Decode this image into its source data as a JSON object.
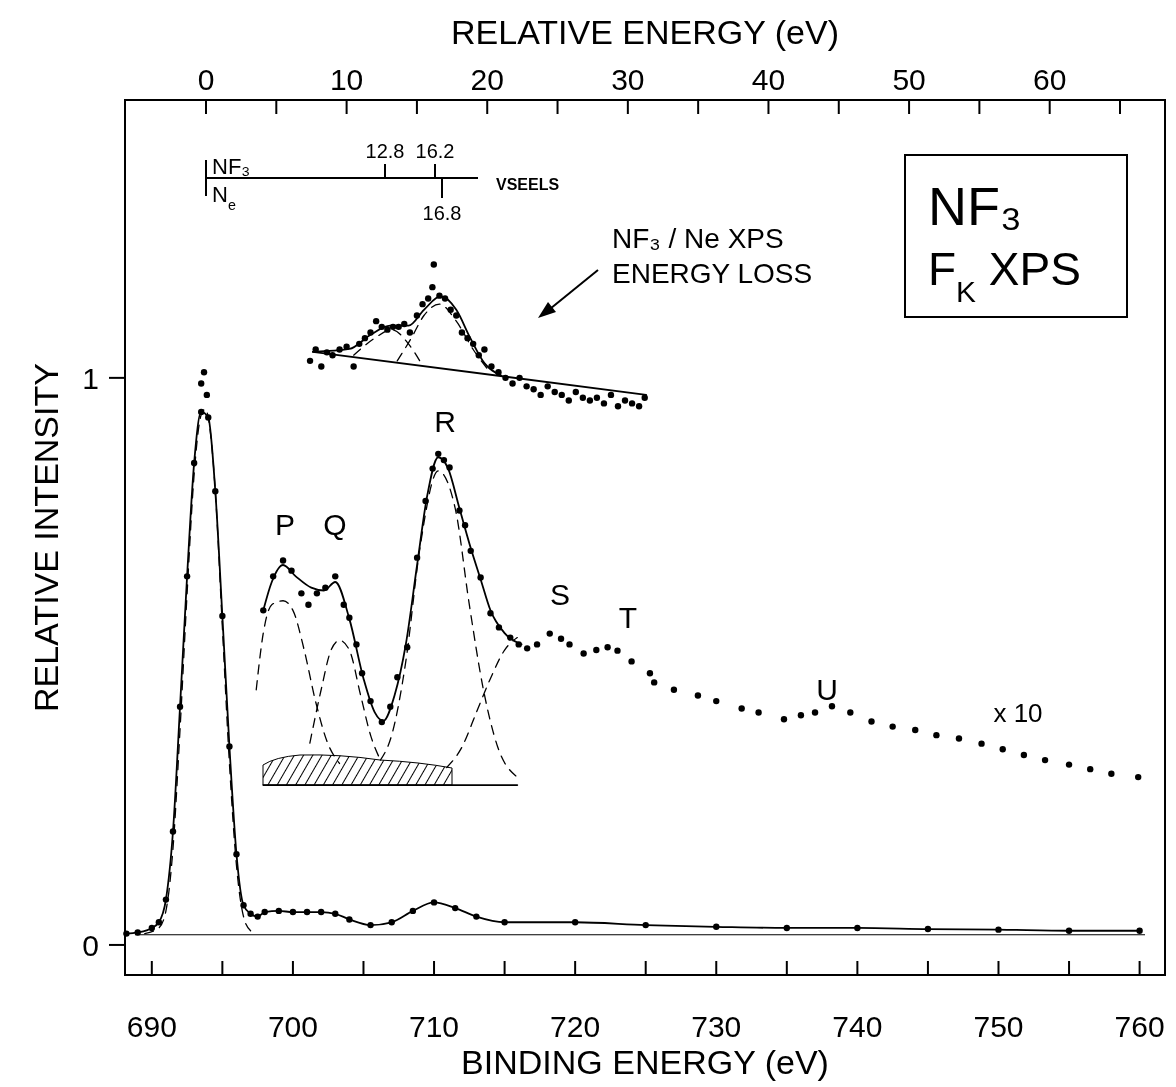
{
  "chart_data": {
    "type": "line",
    "xlabel": "BINDING ENERGY (eV)",
    "ylabel": "RELATIVE INTENSITY",
    "x2label": "RELATIVE ENERGY (eV)",
    "xlim": [
      688.1,
      761.8
    ],
    "xticks": [
      690,
      {
        "value": 695,
        "label": null
      },
      700,
      {
        "value": 705,
        "label": null
      },
      710,
      {
        "value": 715,
        "label": null
      },
      720,
      {
        "value": 725,
        "label": null
      },
      730,
      {
        "value": 735,
        "label": null
      },
      740,
      {
        "value": 745,
        "label": null
      },
      750,
      {
        "value": 755,
        "label": null
      },
      760
    ],
    "x2lim": [
      -5.76,
      68.2
    ],
    "x2ticks": [
      0,
      {
        "value": 5,
        "label": null
      },
      10,
      {
        "value": 15,
        "label": null
      },
      20,
      {
        "value": 25,
        "label": null
      },
      30,
      {
        "value": 35,
        "label": null
      },
      40,
      {
        "value": 45,
        "label": null
      },
      50,
      {
        "value": 55,
        "label": null
      },
      60,
      {
        "value": 65,
        "label": null
      }
    ],
    "ylim": [
      -0.053,
      1.49
    ],
    "yticks": [
      0,
      1
    ],
    "ref_lines": [
      {
        "axis": "y",
        "value": 0.018,
        "color": "#000000"
      }
    ],
    "series": [
      {
        "type": "line",
        "color": "#000000",
        "marker": "circle",
        "x": [
          688.2,
          689,
          690,
          690.5,
          691,
          691.5,
          692,
          692.5,
          693,
          693.5,
          694,
          694.5,
          695,
          695.5,
          696,
          696.5,
          697,
          697.5,
          698,
          699,
          700,
          701,
          702,
          703,
          704,
          705.5,
          707,
          708.5,
          710,
          711.5,
          713,
          715,
          720,
          725,
          730,
          735,
          740,
          745,
          750,
          755,
          760
        ],
        "values": [
          0.02,
          0.022,
          0.03,
          0.04,
          0.08,
          0.2,
          0.42,
          0.65,
          0.85,
          0.94,
          0.93,
          0.8,
          0.58,
          0.35,
          0.16,
          0.07,
          0.055,
          0.05,
          0.058,
          0.06,
          0.058,
          0.058,
          0.058,
          0.055,
          0.045,
          0.035,
          0.04,
          0.06,
          0.075,
          0.065,
          0.05,
          0.04,
          0.04,
          0.035,
          0.032,
          0.03,
          0.03,
          0.028,
          0.027,
          0.025,
          0.025
        ]
      },
      {
        "type": "scatter",
        "color": "#000000",
        "marker": "circle",
        "x": [
          693.5,
          693.7,
          693.9
        ],
        "values": [
          0.99,
          1.01,
          0.97
        ]
      },
      {
        "type": "line",
        "color": "#000000",
        "line_style": "dashed",
        "x": [
          689.5,
          690.5,
          691,
          691.5,
          692,
          692.5,
          693,
          693.5,
          693.8,
          694,
          694.5,
          695,
          695.5,
          696,
          696.5,
          697
        ],
        "values": [
          0.02,
          0.03,
          0.06,
          0.17,
          0.38,
          0.62,
          0.83,
          0.935,
          0.945,
          0.93,
          0.8,
          0.56,
          0.32,
          0.14,
          0.05,
          0.025
        ]
      },
      {
        "type": "line",
        "color": "#000000",
        "x": [
          697.9,
          715.9
        ],
        "values": [
          0.282,
          0.282
        ]
      },
      {
        "type": "line",
        "color": "#000000",
        "line_style": "dashed",
        "x": [
          697.4,
          697.9,
          698.5,
          699.3,
          700,
          700.8,
          701.6,
          702.4,
          703.3
        ],
        "values": [
          0.45,
          0.55,
          0.6,
          0.607,
          0.59,
          0.52,
          0.43,
          0.36,
          0.32
        ]
      },
      {
        "type": "line",
        "color": "#000000",
        "line_style": "dashed",
        "x": [
          701.2,
          702,
          702.7,
          703.3,
          704,
          704.8,
          705.5,
          706.2
        ],
        "values": [
          0.356,
          0.45,
          0.52,
          0.537,
          0.52,
          0.44,
          0.37,
          0.326
        ]
      },
      {
        "type": "line",
        "color": "#000000",
        "line_style": "dashed",
        "x": [
          706.2,
          707,
          708,
          709,
          710.3,
          711.5,
          712.5,
          713.5,
          714.5,
          715.9
        ],
        "values": [
          0.326,
          0.37,
          0.5,
          0.7,
          0.836,
          0.77,
          0.6,
          0.45,
          0.35,
          0.296
        ]
      },
      {
        "type": "line",
        "color": "#000000",
        "line_style": "dashed",
        "x": [
          710.9,
          712,
          713,
          714,
          715,
          715.9
        ],
        "values": [
          0.313,
          0.35,
          0.41,
          0.47,
          0.52,
          0.542
        ]
      },
      {
        "type": "line",
        "color": "#000000",
        "x": [
          697.9,
          698.5,
          699.3,
          700.2,
          701.3,
          702.2,
          703,
          704,
          705,
          705.8,
          706.4,
          707.2,
          708,
          708.8,
          709.5,
          710.3,
          711,
          711.8,
          712.6,
          713.3,
          714,
          715,
          716.2
        ],
        "values": [
          0.59,
          0.64,
          0.67,
          0.65,
          0.63,
          0.625,
          0.64,
          0.575,
          0.47,
          0.41,
          0.395,
          0.44,
          0.53,
          0.67,
          0.79,
          0.86,
          0.84,
          0.77,
          0.7,
          0.645,
          0.59,
          0.55,
          0.53
        ]
      },
      {
        "type": "scatter",
        "color": "#000000",
        "marker": "circle",
        "x": [
          697.9,
          698.6,
          699.3,
          699.9,
          700.6,
          701.1,
          701.7,
          702.3,
          703,
          703.6,
          704,
          704.5,
          704.9,
          705.5,
          706.3,
          706.9,
          707.4,
          708.1,
          708.8,
          709.4,
          709.9,
          710.3,
          710.7,
          711.1,
          711.8,
          712.2,
          712.6,
          713.3,
          714,
          714.6,
          715.4,
          716,
          716.6,
          717.3,
          718.2,
          719,
          719.6,
          720.6,
          721.5,
          722.3,
          723,
          724,
          725.3,
          725.6,
          727,
          728.7,
          730,
          731.8,
          733,
          734.8,
          736,
          737,
          738.2,
          739.5,
          741,
          742.5,
          744.1,
          745.6,
          747.2,
          748.8,
          750.3,
          751.8,
          753.3,
          755,
          756.5,
          758,
          759.9
        ],
        "values": [
          0.59,
          0.65,
          0.678,
          0.66,
          0.62,
          0.6,
          0.62,
          0.63,
          0.65,
          0.6,
          0.577,
          0.53,
          0.479,
          0.43,
          0.393,
          0.42,
          0.472,
          0.525,
          0.683,
          0.783,
          0.84,
          0.866,
          0.855,
          0.842,
          0.766,
          0.74,
          0.695,
          0.648,
          0.585,
          0.56,
          0.542,
          0.53,
          0.523,
          0.53,
          0.549,
          0.54,
          0.53,
          0.514,
          0.52,
          0.525,
          0.519,
          0.5,
          0.479,
          0.463,
          0.45,
          0.44,
          0.43,
          0.417,
          0.41,
          0.398,
          0.405,
          0.41,
          0.421,
          0.41,
          0.394,
          0.385,
          0.379,
          0.37,
          0.364,
          0.355,
          0.345,
          0.335,
          0.326,
          0.318,
          0.31,
          0.302,
          0.296
        ]
      },
      {
        "type": "scatter",
        "color": "#000000",
        "marker": "circle",
        "axis": "x2",
        "x": [
          7.4,
          7.8,
          8.2,
          8.6,
          9,
          9.5,
          10,
          10.5,
          10.9,
          11.3,
          11.7,
          12.1,
          12.5,
          12.9,
          13.3,
          13.7,
          14.1,
          14.5,
          15,
          15.4,
          15.8,
          16.1,
          16.2,
          16.6,
          17,
          17.4,
          17.8,
          18.2,
          18.6,
          19,
          19.4,
          19.8,
          20.3,
          20.8,
          21.3,
          21.8,
          22.3,
          22.8,
          23.3,
          23.8,
          24.3,
          24.8,
          25.3,
          25.8,
          26.3,
          26.8,
          27.3,
          27.8,
          28.3,
          28.8,
          29.3,
          29.8,
          30.3,
          30.8,
          31.2
        ],
        "values": [
          1.03,
          1.05,
          1.02,
          1.045,
          1.04,
          1.05,
          1.055,
          1.02,
          1.06,
          1.07,
          1.08,
          1.1,
          1.09,
          1.085,
          1.09,
          1.09,
          1.095,
          1.08,
          1.11,
          1.13,
          1.14,
          1.16,
          1.2,
          1.145,
          1.14,
          1.12,
          1.11,
          1.08,
          1.07,
          1.06,
          1.04,
          1.05,
          1.02,
          1.01,
          1,
          0.99,
          1,
          0.985,
          0.98,
          0.97,
          0.985,
          0.975,
          0.97,
          0.96,
          0.975,
          0.965,
          0.96,
          0.965,
          0.955,
          0.97,
          0.95,
          0.96,
          0.955,
          0.95,
          0.965
        ]
      },
      {
        "type": "line",
        "color": "#000000",
        "axis": "x2",
        "x": [
          7.6,
          10.2,
          11.7,
          13.1,
          14.4,
          15.5,
          16.7,
          17.8,
          18.8,
          19.8,
          21
        ],
        "values": [
          1.046,
          1.051,
          1.076,
          1.092,
          1.092,
          1.12,
          1.144,
          1.12,
          1.07,
          1.026,
          1.004
        ]
      },
      {
        "type": "line",
        "color": "#000000",
        "axis": "x2",
        "x": [
          7.6,
          31.3
        ],
        "values": [
          1.046,
          0.97
        ]
      },
      {
        "type": "line",
        "color": "#000000",
        "axis": "x2",
        "line_style": "dashed",
        "x": [
          10.5,
          12,
          13.2,
          14.4,
          15.2
        ],
        "values": [
          1.04,
          1.07,
          1.085,
          1.06,
          1.03
        ]
      },
      {
        "type": "line",
        "color": "#000000",
        "axis": "x2",
        "line_style": "dashed",
        "x": [
          13.6,
          14.6,
          15.5,
          16.6,
          17.8,
          19,
          20.2
        ],
        "values": [
          1.03,
          1.07,
          1.11,
          1.13,
          1.1,
          1.05,
          1.01
        ]
      }
    ],
    "annotations": [
      "P",
      "Q",
      "R",
      "S",
      "T",
      "U",
      "x 10",
      "NF₃ / Ne  XPS",
      "ENERGY LOSS",
      "NF₃",
      "F$_{K}$ XPS",
      "12.8",
      "16.2",
      "16.8",
      "NF₃",
      "N$_{e}$",
      "VSEELS"
    ]
  }
}
